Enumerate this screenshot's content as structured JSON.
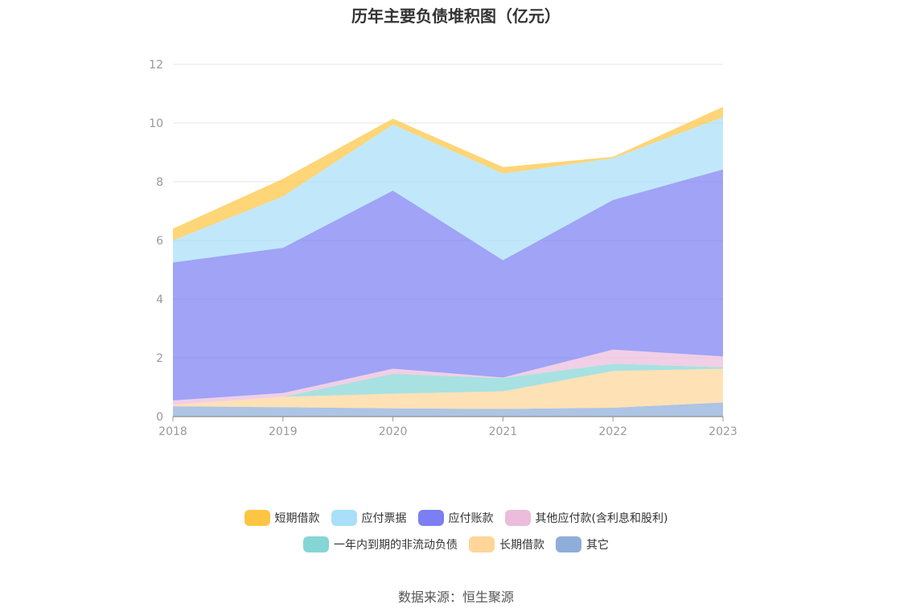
{
  "title": "历年主要负债堆积图（亿元）",
  "source": "数据来源：恒生聚源",
  "chart_data": {
    "type": "area",
    "stacked": true,
    "title": "历年主要负债堆积图（亿元）",
    "x": [
      "2018",
      "2019",
      "2020",
      "2021",
      "2022",
      "2023"
    ],
    "ylim": [
      0,
      12
    ],
    "yticks": [
      0,
      2,
      4,
      6,
      8,
      10,
      12
    ],
    "grid": true,
    "legend_position": "bottom",
    "series": [
      {
        "name": "其它",
        "color": "#8eadd9",
        "values": [
          0.35,
          0.32,
          0.28,
          0.26,
          0.3,
          0.48
        ]
      },
      {
        "name": "长期借款",
        "color": "#ffd59a",
        "values": [
          0.05,
          0.35,
          0.5,
          0.6,
          1.25,
          1.15
        ]
      },
      {
        "name": "一年内到期的非流动负债",
        "color": "#86d5d6",
        "values": [
          0.0,
          0.0,
          0.68,
          0.45,
          0.25,
          0.05
        ]
      },
      {
        "name": "其他应付款(含利息和股利)",
        "color": "#ebbcdc",
        "values": [
          0.15,
          0.13,
          0.17,
          0.02,
          0.48,
          0.37
        ]
      },
      {
        "name": "应付账款",
        "color": "#7b7ff2",
        "values": [
          4.7,
          4.95,
          6.07,
          4.0,
          5.1,
          6.37
        ]
      },
      {
        "name": "应付票据",
        "color": "#a9dff8",
        "values": [
          0.75,
          1.75,
          2.25,
          2.95,
          1.42,
          1.78
        ]
      },
      {
        "name": "短期借款",
        "color": "#fdc543",
        "values": [
          0.4,
          0.6,
          0.2,
          0.22,
          0.05,
          0.35
        ]
      }
    ]
  },
  "legend": {
    "row1": [
      {
        "label": "短期借款",
        "color": "#fdc543"
      },
      {
        "label": "应付票据",
        "color": "#a9dff8"
      },
      {
        "label": "应付账款",
        "color": "#7b7ff2"
      },
      {
        "label": "其他应付款(含利息和股利)",
        "color": "#ebbcdc"
      }
    ],
    "row2": [
      {
        "label": "一年内到期的非流动负债",
        "color": "#86d5d6"
      },
      {
        "label": "长期借款",
        "color": "#ffd59a"
      },
      {
        "label": "其它",
        "color": "#8eadd9"
      }
    ]
  }
}
